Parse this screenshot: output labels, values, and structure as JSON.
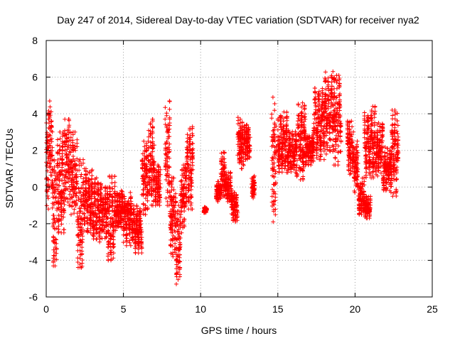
{
  "chart_data": {
    "type": "scatter",
    "title": "Day 247 of 2014, Sidereal Day-to-day VTEC variation (SDTVAR) for receiver nya2",
    "xlabel": "GPS time / hours",
    "ylabel": "SDTVAR / TECUs",
    "xlim": [
      0,
      25
    ],
    "ylim": [
      -6,
      8
    ],
    "xticks": [
      0,
      5,
      10,
      15,
      20,
      25
    ],
    "yticks": [
      -6,
      -4,
      -2,
      0,
      2,
      4,
      6,
      8
    ],
    "xtick_labels": [
      "0",
      "5",
      "10",
      "15",
      "20",
      "25"
    ],
    "ytick_labels": [
      "-6",
      "-4",
      "-2",
      "0",
      "2",
      "4",
      "6",
      "8"
    ],
    "grid": true,
    "marker": "+",
    "color": "#ff0000",
    "series": [
      {
        "name": "SDTVAR",
        "segments": [
          {
            "x0": 0.0,
            "x1": 0.15,
            "ymin": -1.2,
            "ymax": 3.5
          },
          {
            "x0": 0.15,
            "x1": 0.4,
            "ymin": 0.0,
            "ymax": 4.7
          },
          {
            "x0": 0.4,
            "x1": 0.7,
            "ymin": -4.3,
            "ymax": 1.5
          },
          {
            "x0": 0.7,
            "x1": 1.2,
            "ymin": -2.5,
            "ymax": 3.0
          },
          {
            "x0": 1.2,
            "x1": 1.6,
            "ymin": -1.0,
            "ymax": 3.7
          },
          {
            "x0": 1.6,
            "x1": 2.0,
            "ymin": -1.5,
            "ymax": 3.0
          },
          {
            "x0": 2.0,
            "x1": 2.4,
            "ymin": -4.4,
            "ymax": 1.5
          },
          {
            "x0": 2.4,
            "x1": 3.0,
            "ymin": -2.5,
            "ymax": 1.0
          },
          {
            "x0": 3.0,
            "x1": 3.6,
            "ymin": -3.0,
            "ymax": 0.5
          },
          {
            "x0": 3.6,
            "x1": 4.0,
            "ymin": -2.8,
            "ymax": 0.0
          },
          {
            "x0": 4.0,
            "x1": 4.5,
            "ymin": -4.0,
            "ymax": 0.6
          },
          {
            "x0": 4.5,
            "x1": 5.0,
            "ymin": -2.2,
            "ymax": -0.2
          },
          {
            "x0": 5.0,
            "x1": 5.6,
            "ymin": -3.2,
            "ymax": -0.3
          },
          {
            "x0": 5.6,
            "x1": 6.2,
            "ymin": -3.6,
            "ymax": -1.0
          },
          {
            "x0": 6.2,
            "x1": 6.6,
            "ymin": -1.5,
            "ymax": 2.5
          },
          {
            "x0": 6.6,
            "x1": 7.0,
            "ymin": -1.0,
            "ymax": 3.7
          },
          {
            "x0": 7.0,
            "x1": 7.4,
            "ymin": -1.0,
            "ymax": 1.2
          },
          {
            "x0": 7.7,
            "x1": 8.0,
            "ymin": -1.0,
            "ymax": 4.7
          },
          {
            "x0": 8.0,
            "x1": 8.4,
            "ymin": -3.8,
            "ymax": 0.5
          },
          {
            "x0": 8.4,
            "x1": 8.7,
            "ymin": -5.3,
            "ymax": -1.0
          },
          {
            "x0": 8.7,
            "x1": 9.0,
            "ymin": -2.5,
            "ymax": 1.2
          },
          {
            "x0": 9.0,
            "x1": 9.5,
            "ymin": -1.2,
            "ymax": 3.3
          },
          {
            "x0": 10.2,
            "x1": 10.4,
            "ymin": -1.4,
            "ymax": -1.1
          },
          {
            "x0": 11.0,
            "x1": 11.3,
            "ymin": -0.8,
            "ymax": 0.3
          },
          {
            "x0": 11.3,
            "x1": 11.6,
            "ymin": -0.5,
            "ymax": 1.9
          },
          {
            "x0": 11.6,
            "x1": 12.0,
            "ymin": -0.8,
            "ymax": 0.8
          },
          {
            "x0": 12.0,
            "x1": 12.4,
            "ymin": -1.9,
            "ymax": -0.3
          },
          {
            "x0": 12.4,
            "x1": 12.8,
            "ymin": 1.0,
            "ymax": 3.8
          },
          {
            "x0": 12.8,
            "x1": 13.2,
            "ymin": 1.5,
            "ymax": 3.4
          },
          {
            "x0": 13.3,
            "x1": 13.5,
            "ymin": -0.6,
            "ymax": 0.6
          },
          {
            "x0": 14.6,
            "x1": 14.9,
            "ymin": -1.9,
            "ymax": 4.9
          },
          {
            "x0": 15.0,
            "x1": 15.6,
            "ymin": 0.8,
            "ymax": 4.1
          },
          {
            "x0": 15.6,
            "x1": 16.2,
            "ymin": 0.8,
            "ymax": 3.1
          },
          {
            "x0": 16.2,
            "x1": 16.8,
            "ymin": 0.4,
            "ymax": 4.6
          },
          {
            "x0": 16.8,
            "x1": 17.3,
            "ymin": 1.2,
            "ymax": 2.8
          },
          {
            "x0": 17.3,
            "x1": 18.0,
            "ymin": 1.5,
            "ymax": 5.4
          },
          {
            "x0": 18.0,
            "x1": 18.6,
            "ymin": 1.8,
            "ymax": 6.3
          },
          {
            "x0": 18.6,
            "x1": 19.1,
            "ymin": 1.2,
            "ymax": 6.1
          },
          {
            "x0": 19.5,
            "x1": 19.9,
            "ymin": 0.7,
            "ymax": 3.6
          },
          {
            "x0": 19.9,
            "x1": 20.2,
            "ymin": -0.3,
            "ymax": 2.5
          },
          {
            "x0": 20.2,
            "x1": 20.6,
            "ymin": -1.5,
            "ymax": 0.5
          },
          {
            "x0": 20.6,
            "x1": 21.0,
            "ymin": -1.7,
            "ymax": -0.5
          },
          {
            "x0": 20.6,
            "x1": 21.3,
            "ymin": 0.5,
            "ymax": 4.4
          },
          {
            "x0": 21.3,
            "x1": 21.8,
            "ymin": 0.6,
            "ymax": 3.5
          },
          {
            "x0": 21.8,
            "x1": 22.3,
            "ymin": -0.2,
            "ymax": 2.2
          },
          {
            "x0": 22.3,
            "x1": 22.8,
            "ymin": -0.5,
            "ymax": 4.2
          }
        ]
      }
    ]
  }
}
